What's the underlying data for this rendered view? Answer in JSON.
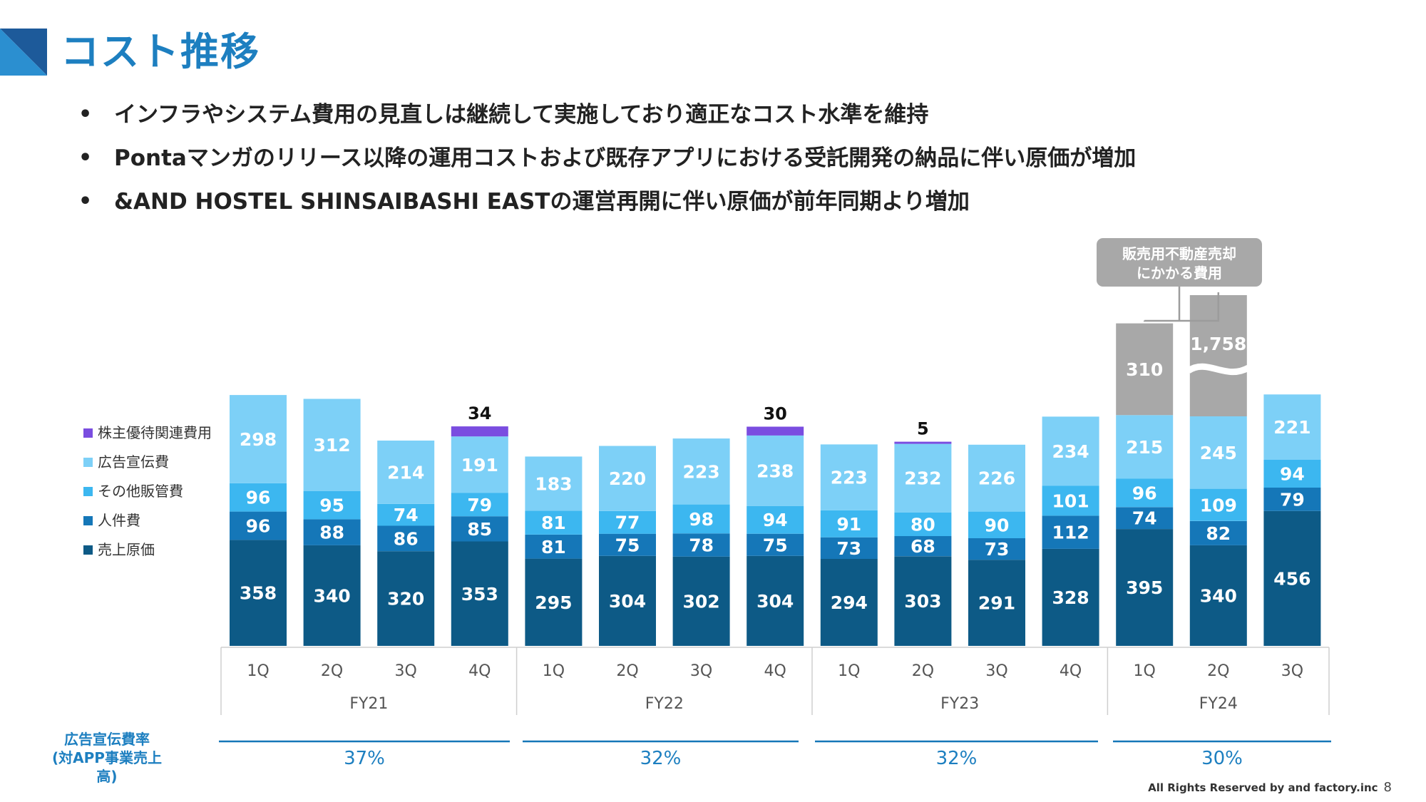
{
  "title": "コスト推移",
  "bullets": [
    "インフラやシステム費用の見直しは継続して実施しており適正なコスト水準を維持",
    "Pontaマンガのリリース以降の運用コストおよび既存アプリにおける受託開発の納品に伴い原価が増加",
    "&AND HOSTEL SHINSAIBASHI EASTの運営再開に伴い原価が前年同期より増加"
  ],
  "callout": {
    "line1": "販売用不動産売却",
    "line2": "にかかる費用"
  },
  "ad_ratio_label": {
    "line1": "広告宣伝費率",
    "line2": "(対APP事業売上高)"
  },
  "footer": {
    "text": "All Rights Reserved by and factory.inc",
    "page": "8"
  },
  "colors": {
    "title": "#1d7fc0",
    "cogs": "#0d5a86",
    "personnel": "#1577b8",
    "other_sga": "#3cb7f0",
    "advertising": "#7dd0f7",
    "shareholder": "#7a4de0",
    "real_estate": "#a8a8a8"
  },
  "chart_data": {
    "type": "bar",
    "stacked": true,
    "categories": [
      "1Q",
      "2Q",
      "3Q",
      "4Q",
      "1Q",
      "2Q",
      "3Q",
      "4Q",
      "1Q",
      "2Q",
      "3Q",
      "4Q",
      "1Q",
      "2Q",
      "3Q"
    ],
    "groups": [
      {
        "label": "FY21",
        "count": 4
      },
      {
        "label": "FY22",
        "count": 4
      },
      {
        "label": "FY23",
        "count": 4
      },
      {
        "label": "FY24",
        "count": 3
      }
    ],
    "legend": [
      "株主優待関連費用",
      "広告宣伝費",
      "その他販管費",
      "人件費",
      "売上原価"
    ],
    "series": [
      {
        "name": "売上原価",
        "key": "cogs",
        "values": [
          358,
          340,
          320,
          353,
          295,
          304,
          302,
          304,
          294,
          303,
          291,
          328,
          395,
          340,
          456
        ]
      },
      {
        "name": "人件費",
        "key": "personnel",
        "values": [
          96,
          88,
          86,
          85,
          81,
          75,
          78,
          75,
          73,
          68,
          73,
          112,
          74,
          82,
          79
        ]
      },
      {
        "name": "その他販管費",
        "key": "other_sga",
        "values": [
          96,
          95,
          74,
          79,
          81,
          77,
          98,
          94,
          91,
          80,
          90,
          101,
          96,
          109,
          94
        ]
      },
      {
        "name": "広告宣伝費",
        "key": "advertising",
        "values": [
          298,
          312,
          214,
          191,
          183,
          220,
          223,
          238,
          223,
          232,
          226,
          234,
          215,
          245,
          221
        ]
      },
      {
        "name": "株主優待関連費用",
        "key": "shareholder",
        "values": [
          0,
          0,
          0,
          34,
          0,
          0,
          0,
          30,
          0,
          5,
          0,
          0,
          0,
          0,
          0
        ]
      },
      {
        "key": "real_estate",
        "values": [
          0,
          0,
          0,
          0,
          0,
          0,
          0,
          0,
          0,
          0,
          0,
          0,
          310,
          1758,
          0
        ],
        "axis_break": [
          false,
          false,
          false,
          false,
          false,
          false,
          false,
          false,
          false,
          false,
          false,
          false,
          false,
          true,
          false
        ]
      }
    ],
    "ad_ratio": [
      "37%",
      "32%",
      "32%",
      "30%"
    ]
  }
}
